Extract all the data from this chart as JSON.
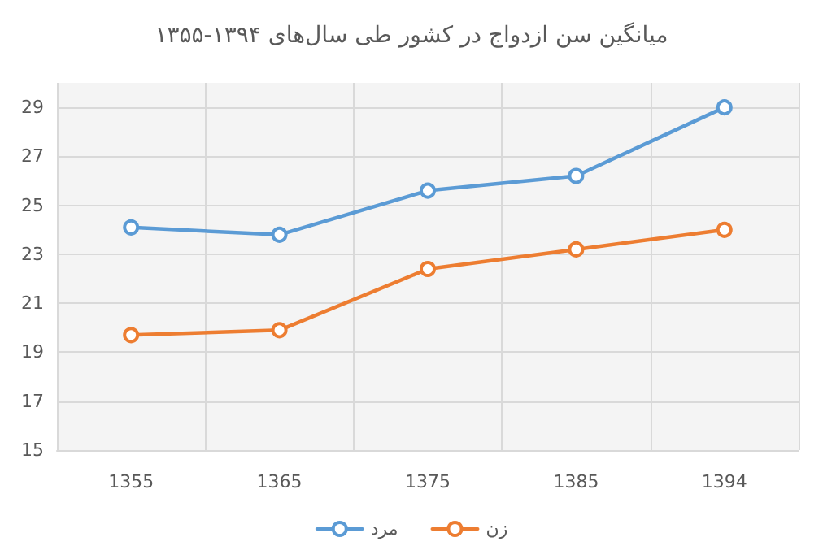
{
  "chart_data": {
    "type": "line",
    "title": "میانگین سن ازدواج در کشور طی سال‌های ۱۳۹۴-۱۳۵۵",
    "categories": [
      "1355",
      "1365",
      "1375",
      "1385",
      "1394"
    ],
    "series": [
      {
        "name": "مرد",
        "color": "#5b9bd5",
        "values": [
          24.1,
          23.8,
          25.6,
          26.2,
          29.0
        ]
      },
      {
        "name": "زن",
        "color": "#ed7d31",
        "values": [
          19.7,
          19.9,
          22.4,
          23.2,
          24.0
        ]
      }
    ],
    "ylim": [
      15,
      30
    ],
    "yticks": [
      15,
      17,
      19,
      21,
      23,
      25,
      27,
      29
    ],
    "grid": true,
    "legend": "bottom",
    "marker": "circle",
    "line_style": "solid"
  }
}
